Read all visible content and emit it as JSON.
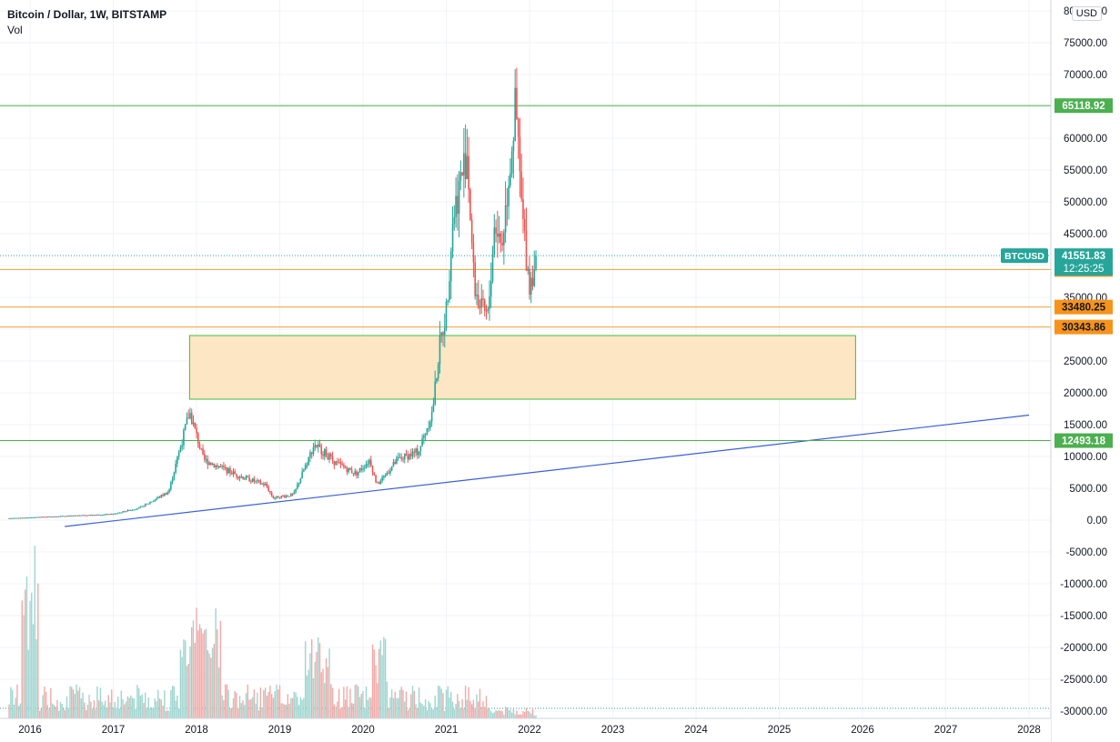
{
  "header": {
    "symbol": "Bitcoin / Dollar, 1W, BITSTAMP",
    "indicator": "Vol",
    "currency_button": "USD"
  },
  "colors": {
    "up": "#26a69a",
    "down": "#ef5350",
    "vol_up": "#9fd5cf",
    "vol_down": "#f2a9a7",
    "green_line": "#4caf50",
    "orange_line": "#f0a030",
    "orange_tag": "#f7931a",
    "zone_fill": "#fde6c4",
    "zone_border": "#3fbf3f",
    "trend_line": "#3b5fd4",
    "price_tag": "#26a69a"
  },
  "chart_data": {
    "type": "candlestick",
    "x_ticks": [
      "2016",
      "2017",
      "2018",
      "2019",
      "2020",
      "2021",
      "2022",
      "2023",
      "2024",
      "2025",
      "2026",
      "2027",
      "2028"
    ],
    "y_ticks": [
      "80000.00",
      "75000.00",
      "70000.00",
      "65000.00",
      "60000.00",
      "55000.00",
      "50000.00",
      "45000.00",
      "40000.00",
      "35000.00",
      "30000.00",
      "25000.00",
      "20000.00",
      "15000.00",
      "10000.00",
      "5000.00",
      "0.00",
      "-5000.00",
      "-10000.00",
      "-15000.00",
      "-20000.00",
      "-25000.00",
      "-30000.00"
    ],
    "ylim": [
      -30000,
      80000
    ],
    "x_range": [
      "2015-10",
      "2028-01"
    ],
    "close_anchors": [
      {
        "t": "2015-10",
        "v": 300
      },
      {
        "t": "2016-06",
        "v": 650
      },
      {
        "t": "2017-01",
        "v": 950
      },
      {
        "t": "2017-05",
        "v": 2000
      },
      {
        "t": "2017-09",
        "v": 4500
      },
      {
        "t": "2017-12",
        "v": 17000
      },
      {
        "t": "2018-02",
        "v": 9500
      },
      {
        "t": "2018-04",
        "v": 8500
      },
      {
        "t": "2018-07",
        "v": 7000
      },
      {
        "t": "2018-11",
        "v": 5500
      },
      {
        "t": "2018-12",
        "v": 3500
      },
      {
        "t": "2019-03",
        "v": 4000
      },
      {
        "t": "2019-06",
        "v": 12000
      },
      {
        "t": "2019-09",
        "v": 9000
      },
      {
        "t": "2019-12",
        "v": 7300
      },
      {
        "t": "2020-02",
        "v": 9500
      },
      {
        "t": "2020-03",
        "v": 5500
      },
      {
        "t": "2020-06",
        "v": 9500
      },
      {
        "t": "2020-09",
        "v": 10800
      },
      {
        "t": "2020-11",
        "v": 17000
      },
      {
        "t": "2020-12",
        "v": 27000
      },
      {
        "t": "2021-01",
        "v": 33000
      },
      {
        "t": "2021-02",
        "v": 48000
      },
      {
        "t": "2021-04",
        "v": 58000
      },
      {
        "t": "2021-05",
        "v": 37000
      },
      {
        "t": "2021-06",
        "v": 33000
      },
      {
        "t": "2021-07",
        "v": 32000
      },
      {
        "t": "2021-08",
        "v": 47000
      },
      {
        "t": "2021-09",
        "v": 43000
      },
      {
        "t": "2021-11",
        "v": 65000
      },
      {
        "t": "2021-12",
        "v": 47000
      },
      {
        "t": "2022-01",
        "v": 37000
      },
      {
        "t": "2022-02",
        "v": 41551.83
      }
    ],
    "horizontal_levels": [
      {
        "value": 65118.92,
        "label": "65118.92",
        "style": "green"
      },
      {
        "value": 39375.59,
        "label": "39375.59",
        "style": "orange"
      },
      {
        "value": 33480.25,
        "label": "33480.25",
        "style": "orange"
      },
      {
        "value": 30343.86,
        "label": "30343.86",
        "style": "orange"
      },
      {
        "value": 12493.18,
        "label": "12493.18",
        "style": "green"
      }
    ],
    "zone": {
      "t_start": "2017-12",
      "t_end": "2025-12",
      "v_low": 19000,
      "v_high": 29000
    },
    "trend_line": {
      "t_start": "2016-06",
      "v_start": -1000,
      "t_end": "2028-01",
      "v_end": 16500
    },
    "last_price": {
      "symbol": "BTCUSD",
      "value": "41551.83",
      "countdown": "12:25:25",
      "v": 41551.83
    }
  }
}
